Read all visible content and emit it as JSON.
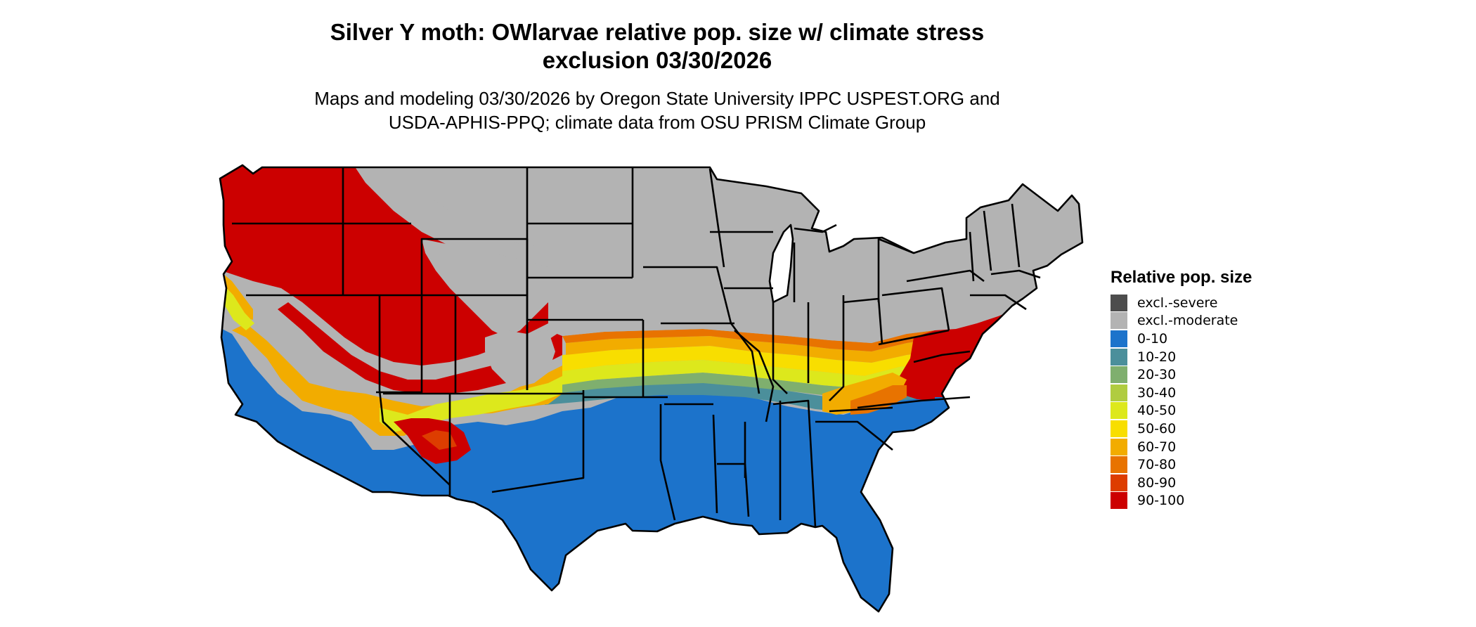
{
  "title_lines": [
    "Silver Y moth: OWlarvae relative pop. size w/ climate stress",
    "exclusion 03/30/2026"
  ],
  "subtitle_lines": [
    "Maps and modeling 03/30/2026 by Oregon State University IPPC USPEST.ORG and",
    "USDA-APHIS-PPQ; climate data from OSU PRISM Climate Group"
  ],
  "map": {
    "region": "contiguous-united-states",
    "state_border_color": "#000000",
    "dominant_categories": {
      "northern_interior": "excl.-moderate",
      "pacific_northwest_and_great_basin": "90-100",
      "southern_states": "0-10",
      "transition_band": "mixed"
    }
  },
  "legend": {
    "title": "Relative pop. size",
    "items": [
      {
        "label": "excl.-severe",
        "color": "#4d4d4d"
      },
      {
        "label": "excl.-moderate",
        "color": "#b3b3b3"
      },
      {
        "label": "0-10",
        "color": "#1c73cb"
      },
      {
        "label": "10-20",
        "color": "#4b8f9b"
      },
      {
        "label": "20-30",
        "color": "#7faf6e"
      },
      {
        "label": "30-40",
        "color": "#b0cc40"
      },
      {
        "label": "40-50",
        "color": "#dde81c"
      },
      {
        "label": "50-60",
        "color": "#f8de00"
      },
      {
        "label": "60-70",
        "color": "#f2ac00"
      },
      {
        "label": "70-80",
        "color": "#e87300"
      },
      {
        "label": "80-90",
        "color": "#dd3d00"
      },
      {
        "label": "90-100",
        "color": "#cc0000"
      }
    ]
  }
}
